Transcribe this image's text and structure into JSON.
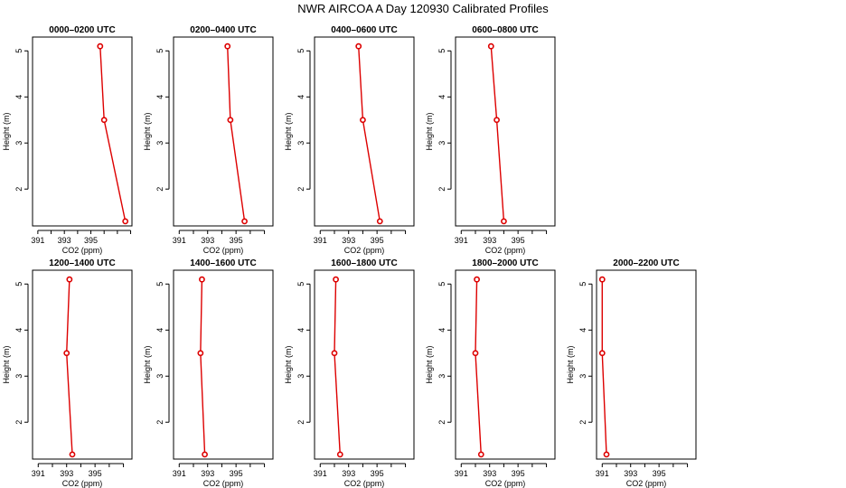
{
  "title": "NWR AIRCOA A  Day 120930  Calibrated Profiles",
  "colors": {
    "series": "#dd0000",
    "axis": "#000000"
  },
  "chart_data": [
    {
      "type": "line",
      "title": "0000–0200 UTC",
      "xlabel": "CO2 (ppm)",
      "ylabel": "Height (m)",
      "xlim": [
        390.6,
        398.1
      ],
      "ylim": [
        1.2,
        5.3
      ],
      "x_ticks": [
        "391",
        "393",
        "395"
      ],
      "y_ticks": [
        "2",
        "3",
        "4",
        "5"
      ],
      "series": [
        {
          "x": [
            395.7,
            396.0,
            397.6
          ],
          "y": [
            5.1,
            3.5,
            1.3
          ]
        }
      ]
    },
    {
      "type": "line",
      "title": "0200–0400 UTC",
      "xlabel": "CO2 (ppm)",
      "ylabel": "Height (m)",
      "xlim": [
        390.6,
        397.6
      ],
      "ylim": [
        1.2,
        5.3
      ],
      "x_ticks": [
        "391",
        "393",
        "395"
      ],
      "y_ticks": [
        "2",
        "3",
        "4",
        "5"
      ],
      "series": [
        {
          "x": [
            394.4,
            394.6,
            395.6
          ],
          "y": [
            5.1,
            3.5,
            1.3
          ]
        }
      ]
    },
    {
      "type": "line",
      "title": "0400–0600 UTC",
      "xlabel": "CO2 (ppm)",
      "ylabel": "Height (m)",
      "xlim": [
        390.6,
        397.6
      ],
      "ylim": [
        1.2,
        5.3
      ],
      "x_ticks": [
        "391",
        "393",
        "395"
      ],
      "y_ticks": [
        "2",
        "3",
        "4",
        "5"
      ],
      "series": [
        {
          "x": [
            393.7,
            394.0,
            395.2
          ],
          "y": [
            5.1,
            3.5,
            1.3
          ]
        }
      ]
    },
    {
      "type": "line",
      "title": "0600–0800 UTC",
      "xlabel": "CO2 (ppm)",
      "ylabel": "Height (m)",
      "xlim": [
        390.6,
        397.6
      ],
      "ylim": [
        1.2,
        5.3
      ],
      "x_ticks": [
        "391",
        "393",
        "395"
      ],
      "y_ticks": [
        "2",
        "3",
        "4",
        "5"
      ],
      "series": [
        {
          "x": [
            393.1,
            393.5,
            394.0
          ],
          "y": [
            5.1,
            3.5,
            1.3
          ]
        }
      ]
    },
    {
      "type": "line",
      "title": "1200–1400 UTC",
      "xlabel": "CO2 (ppm)",
      "ylabel": "Height (m)",
      "xlim": [
        390.6,
        397.6
      ],
      "ylim": [
        1.2,
        5.3
      ],
      "x_ticks": [
        "391",
        "393",
        "395"
      ],
      "y_ticks": [
        "2",
        "3",
        "4",
        "5"
      ],
      "series": [
        {
          "x": [
            393.2,
            393.0,
            393.4
          ],
          "y": [
            5.1,
            3.5,
            1.3
          ]
        }
      ]
    },
    {
      "type": "line",
      "title": "1400–1600 UTC",
      "xlabel": "CO2 (ppm)",
      "ylabel": "Height (m)",
      "xlim": [
        390.6,
        397.6
      ],
      "ylim": [
        1.2,
        5.3
      ],
      "x_ticks": [
        "391",
        "393",
        "395"
      ],
      "y_ticks": [
        "2",
        "3",
        "4",
        "5"
      ],
      "series": [
        {
          "x": [
            392.6,
            392.5,
            392.8
          ],
          "y": [
            5.1,
            3.5,
            1.3
          ]
        }
      ]
    },
    {
      "type": "line",
      "title": "1600–1800 UTC",
      "xlabel": "CO2 (ppm)",
      "ylabel": "Height (m)",
      "xlim": [
        390.6,
        397.6
      ],
      "ylim": [
        1.2,
        5.3
      ],
      "x_ticks": [
        "391",
        "393",
        "395"
      ],
      "y_ticks": [
        "2",
        "3",
        "4",
        "5"
      ],
      "series": [
        {
          "x": [
            392.1,
            392.0,
            392.4
          ],
          "y": [
            5.1,
            3.5,
            1.3
          ]
        }
      ]
    },
    {
      "type": "line",
      "title": "1800–2000 UTC",
      "xlabel": "CO2 (ppm)",
      "ylabel": "Height (m)",
      "xlim": [
        390.6,
        397.6
      ],
      "ylim": [
        1.2,
        5.3
      ],
      "x_ticks": [
        "391",
        "393",
        "395"
      ],
      "y_ticks": [
        "2",
        "3",
        "4",
        "5"
      ],
      "series": [
        {
          "x": [
            392.1,
            392.0,
            392.4
          ],
          "y": [
            5.1,
            3.5,
            1.3
          ]
        }
      ]
    },
    {
      "type": "line",
      "title": "2000–2200 UTC",
      "xlabel": "CO2 (ppm)",
      "ylabel": "Height (m)",
      "xlim": [
        390.6,
        397.6
      ],
      "ylim": [
        1.2,
        5.3
      ],
      "x_ticks": [
        "391",
        "393",
        "395"
      ],
      "y_ticks": [
        "2",
        "3",
        "4",
        "5"
      ],
      "series": [
        {
          "x": [
            391.0,
            391.0,
            391.3
          ],
          "y": [
            5.1,
            3.5,
            1.3
          ]
        }
      ]
    }
  ]
}
